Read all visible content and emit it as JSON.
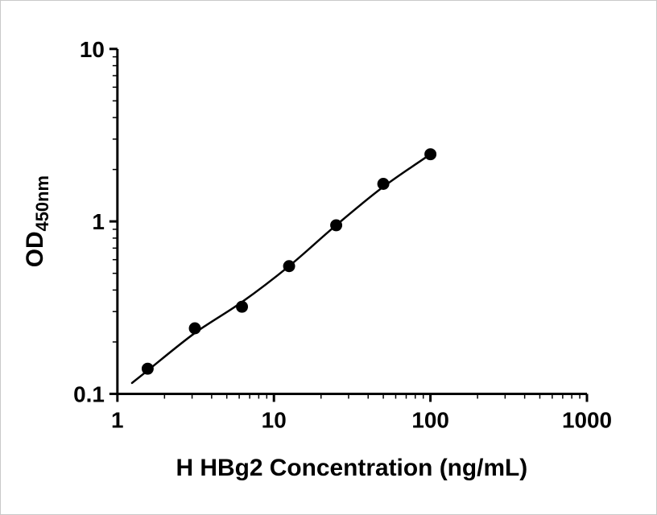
{
  "chart_data": {
    "type": "scatter",
    "title": "",
    "xlabel": "H HBg2 Concentration (ng/mL)",
    "ylabel": "OD450nm",
    "ylabel_main": "OD",
    "ylabel_sub": "450nm",
    "x_scale": "log",
    "y_scale": "log",
    "xlim": [
      1,
      1000
    ],
    "ylim": [
      0.1,
      10
    ],
    "x_ticks": [
      1,
      10,
      100,
      1000
    ],
    "y_ticks": [
      0.1,
      1,
      10
    ],
    "grid": false,
    "legend": false,
    "fit_line": true,
    "axis_color": "#000000",
    "line_color": "#000000",
    "marker_color": "#000000",
    "points": [
      {
        "x": 1.56,
        "y": 0.14
      },
      {
        "x": 3.125,
        "y": 0.24
      },
      {
        "x": 6.25,
        "y": 0.32
      },
      {
        "x": 12.5,
        "y": 0.55
      },
      {
        "x": 25,
        "y": 0.95
      },
      {
        "x": 50,
        "y": 1.65
      },
      {
        "x": 100,
        "y": 2.45
      }
    ]
  }
}
